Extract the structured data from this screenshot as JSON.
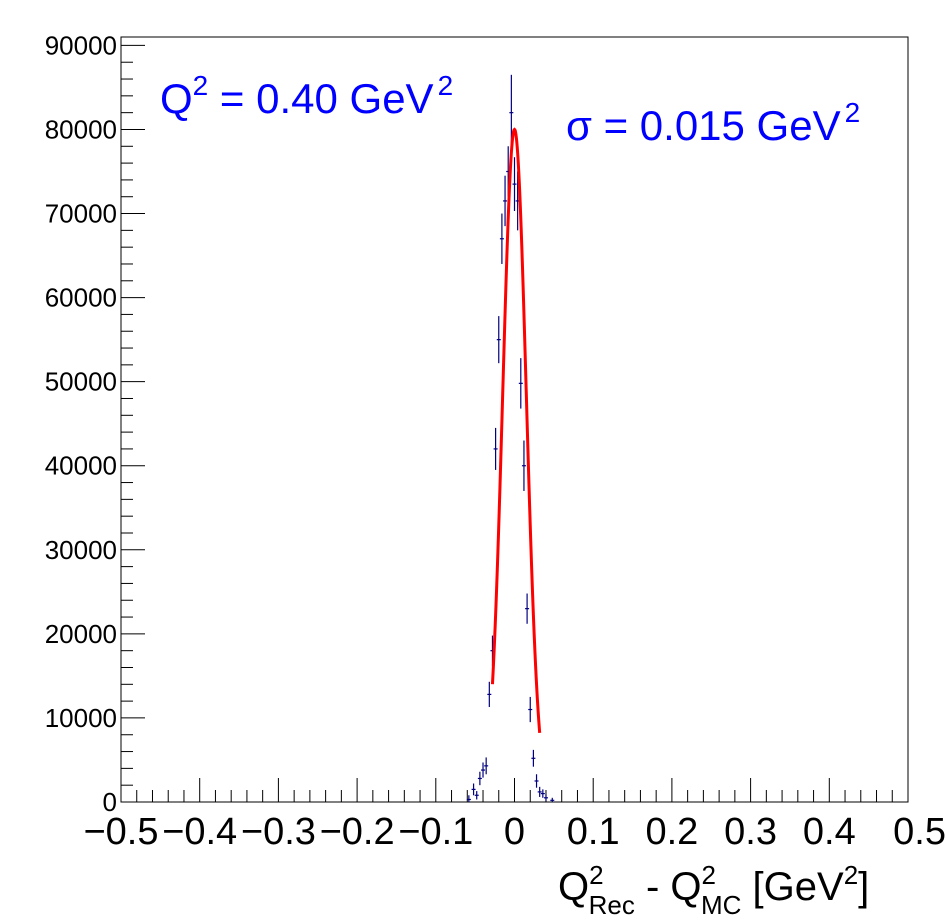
{
  "chart_data": {
    "type": "histogram",
    "annotations": {
      "q2_label": {
        "main": "Q",
        "sup": "2",
        "rest": " = 0.40 GeV",
        "sup2": "2"
      },
      "sigma_label": {
        "main": "σ = 0.015 GeV",
        "sup": "2"
      }
    },
    "xlabel": {
      "q": "Q",
      "sup1": "2",
      "sub1": "Rec",
      "mid": " - Q",
      "sup2": "2",
      "sub2": "MC",
      "unit_open": " [GeV",
      "sup3": "2",
      "unit_close": "]"
    },
    "x_ticks": [
      "−0.5",
      "−0.4",
      "−0.3",
      "−0.2",
      "−0.1",
      "0",
      "0.1",
      "0.2",
      "0.3",
      "0.4",
      "0.5"
    ],
    "y_ticks": [
      "0",
      "10000",
      "20000",
      "30000",
      "40000",
      "50000",
      "60000",
      "70000",
      "80000",
      "90000"
    ],
    "xlim": [
      -0.5,
      0.5
    ],
    "ylim": [
      0,
      91000
    ],
    "colors": {
      "data": "#000080",
      "fit": "#ff0000",
      "annotation": "#0000ff",
      "axis": "#000000"
    },
    "fit": {
      "mean": 0.0,
      "sigma": 0.015,
      "amplitude": 80000,
      "range": [
        -0.028,
        0.032
      ]
    },
    "points": [
      {
        "x": -0.058,
        "y": 300,
        "err": 500
      },
      {
        "x": -0.052,
        "y": 1500,
        "err": 700
      },
      {
        "x": -0.048,
        "y": 800,
        "err": 500
      },
      {
        "x": -0.044,
        "y": 2800,
        "err": 800
      },
      {
        "x": -0.04,
        "y": 3800,
        "err": 900
      },
      {
        "x": -0.036,
        "y": 4300,
        "err": 1000
      },
      {
        "x": -0.032,
        "y": 12800,
        "err": 1500
      },
      {
        "x": -0.028,
        "y": 18000,
        "err": 1800
      },
      {
        "x": -0.024,
        "y": 42000,
        "err": 2500
      },
      {
        "x": -0.02,
        "y": 55000,
        "err": 2800
      },
      {
        "x": -0.016,
        "y": 67000,
        "err": 3000
      },
      {
        "x": -0.012,
        "y": 71500,
        "err": 3000
      },
      {
        "x": -0.008,
        "y": 75000,
        "err": 3000
      },
      {
        "x": -0.004,
        "y": 82000,
        "err": 4500
      },
      {
        "x": 0.0,
        "y": 73500,
        "err": 3200
      },
      {
        "x": 0.004,
        "y": 71500,
        "err": 3500
      },
      {
        "x": 0.008,
        "y": 49800,
        "err": 3000
      },
      {
        "x": 0.012,
        "y": 40000,
        "err": 3000
      },
      {
        "x": 0.016,
        "y": 23000,
        "err": 1800
      },
      {
        "x": 0.02,
        "y": 11000,
        "err": 1500
      },
      {
        "x": 0.024,
        "y": 5200,
        "err": 1000
      },
      {
        "x": 0.028,
        "y": 2500,
        "err": 800
      },
      {
        "x": 0.032,
        "y": 1200,
        "err": 600
      },
      {
        "x": 0.036,
        "y": 1000,
        "err": 500
      },
      {
        "x": 0.04,
        "y": 500,
        "err": 400
      },
      {
        "x": 0.048,
        "y": 200,
        "err": 300
      }
    ]
  }
}
